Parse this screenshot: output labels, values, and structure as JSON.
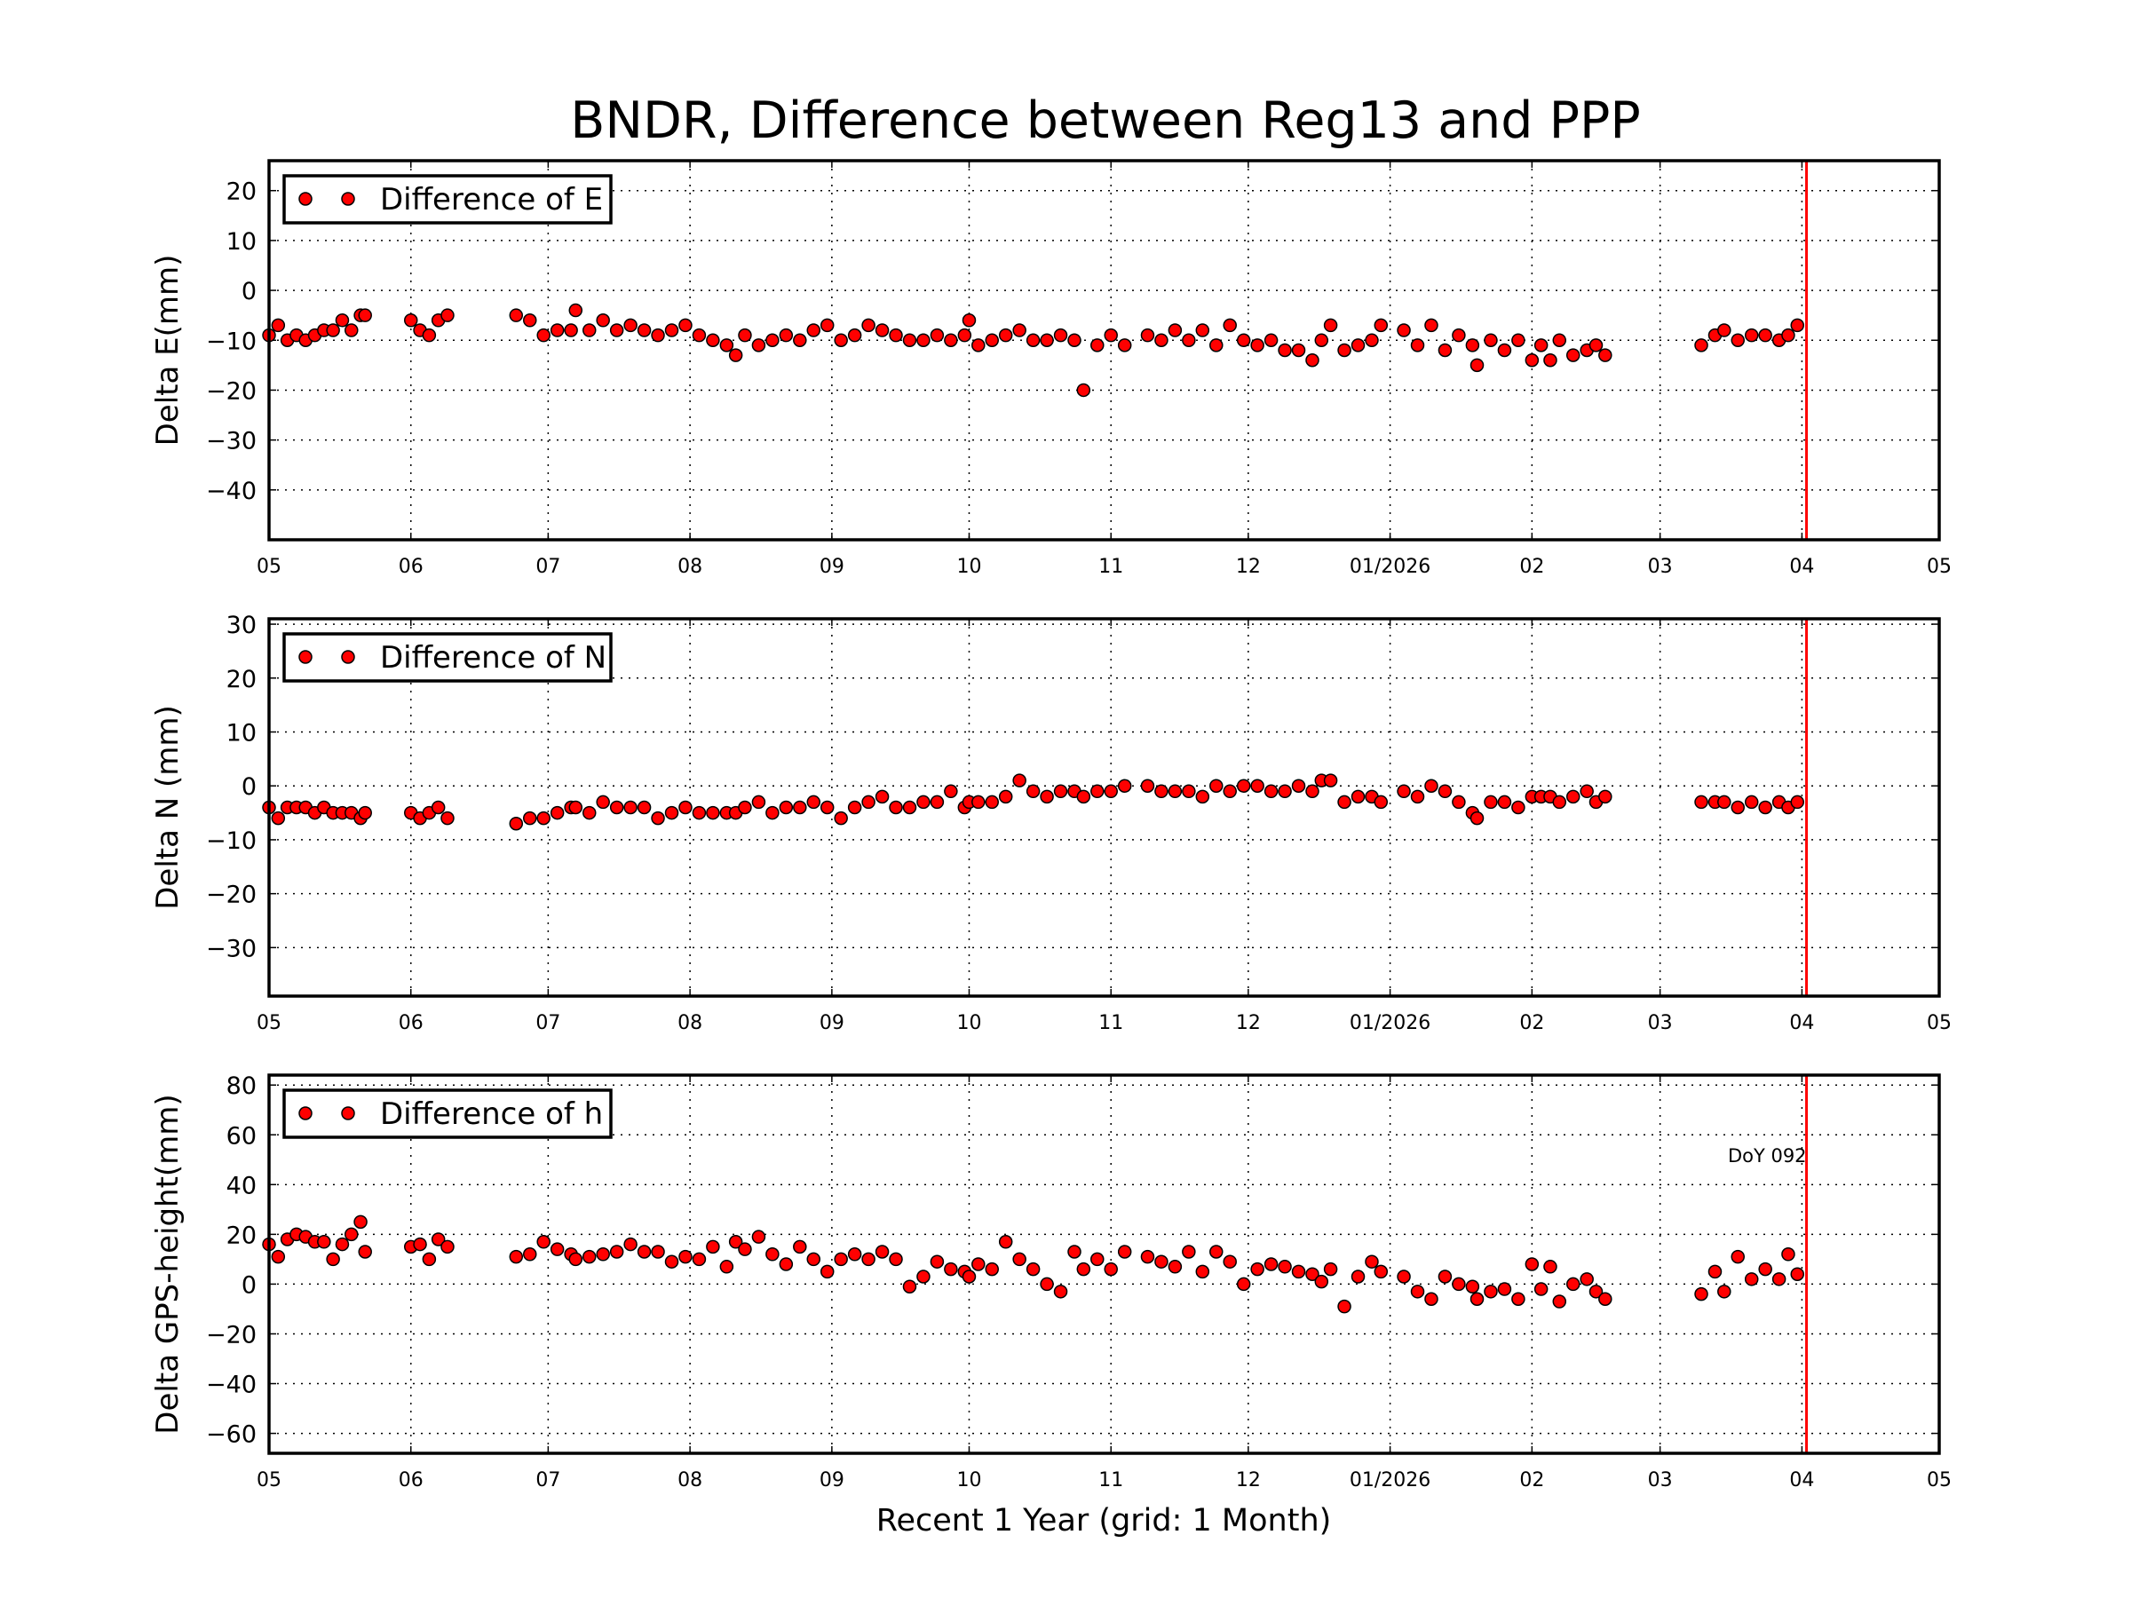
{
  "title": "BNDR, Difference between Reg13 and PPP",
  "colors": {
    "marker": "#ff0000",
    "marker_edge": "#000000",
    "vline": "#ff0000",
    "annotation": "#ff0000"
  },
  "chart_data": {
    "type": "scatter",
    "title": "BNDR, Difference between Reg13 and PPP",
    "xlabel": "Recent 1 Year (grid: 1 Month)",
    "xlim": [
      "2025-05-01",
      "2026-05-01"
    ],
    "x_tick_labels": [
      "05",
      "06",
      "07",
      "08",
      "09",
      "10",
      "11",
      "12",
      "01/2026",
      "02",
      "03",
      "04",
      "05"
    ],
    "x_tick_dates": [
      "2025-05-01",
      "2025-06-01",
      "2025-07-01",
      "2025-08-01",
      "2025-09-01",
      "2025-10-01",
      "2025-11-01",
      "2025-12-01",
      "2026-01-01",
      "2026-02-01",
      "2026-03-01",
      "2026-04-01",
      "2026-05-01"
    ],
    "grid": true,
    "legend_placement": "top-left",
    "vertical_line": {
      "date": "2026-04-02",
      "label": "DoY 092"
    },
    "dates": [
      "2025-05-01",
      "2025-05-03",
      "2025-05-05",
      "2025-05-07",
      "2025-05-09",
      "2025-05-11",
      "2025-05-13",
      "2025-05-15",
      "2025-05-17",
      "2025-05-19",
      "2025-05-21",
      "2025-05-22",
      "2025-06-01",
      "2025-06-03",
      "2025-06-05",
      "2025-06-07",
      "2025-06-09",
      "2025-06-24",
      "2025-06-27",
      "2025-06-30",
      "2025-07-03",
      "2025-07-06",
      "2025-07-07",
      "2025-07-10",
      "2025-07-13",
      "2025-07-16",
      "2025-07-19",
      "2025-07-22",
      "2025-07-25",
      "2025-07-28",
      "2025-07-31",
      "2025-08-03",
      "2025-08-06",
      "2025-08-09",
      "2025-08-11",
      "2025-08-13",
      "2025-08-16",
      "2025-08-19",
      "2025-08-22",
      "2025-08-25",
      "2025-08-28",
      "2025-08-31",
      "2025-09-03",
      "2025-09-06",
      "2025-09-09",
      "2025-09-12",
      "2025-09-15",
      "2025-09-18",
      "2025-09-21",
      "2025-09-24",
      "2025-09-27",
      "2025-09-30",
      "2025-10-01",
      "2025-10-03",
      "2025-10-06",
      "2025-10-09",
      "2025-10-12",
      "2025-10-15",
      "2025-10-18",
      "2025-10-21",
      "2025-10-24",
      "2025-10-26",
      "2025-10-29",
      "2025-11-01",
      "2025-11-04",
      "2025-11-09",
      "2025-11-12",
      "2025-11-15",
      "2025-11-18",
      "2025-11-21",
      "2025-11-24",
      "2025-11-27",
      "2025-11-30",
      "2025-12-03",
      "2025-12-06",
      "2025-12-09",
      "2025-12-12",
      "2025-12-15",
      "2025-12-17",
      "2025-12-19",
      "2025-12-22",
      "2025-12-25",
      "2025-12-28",
      "2025-12-30",
      "2026-01-04",
      "2026-01-07",
      "2026-01-10",
      "2026-01-13",
      "2026-01-16",
      "2026-01-19",
      "2026-01-20",
      "2026-01-23",
      "2026-01-26",
      "2026-01-29",
      "2026-02-01",
      "2026-02-03",
      "2026-02-05",
      "2026-02-07",
      "2026-02-10",
      "2026-02-13",
      "2026-02-15",
      "2026-02-17",
      "2026-03-10",
      "2026-03-13",
      "2026-03-15",
      "2026-03-18",
      "2026-03-21",
      "2026-03-24",
      "2026-03-27",
      "2026-03-29",
      "2026-03-31"
    ],
    "panels": [
      {
        "ylabel": "Delta E(mm)",
        "legend": "Difference of E",
        "ylim": [
          -50,
          26
        ],
        "yticks": [
          -40,
          -30,
          -20,
          -10,
          0,
          10,
          20
        ],
        "values": [
          -9,
          -7,
          -10,
          -9,
          -10,
          -9,
          -8,
          -8,
          -6,
          -8,
          -5,
          -5,
          -6,
          -8,
          -9,
          -6,
          -5,
          -5,
          -6,
          -9,
          -8,
          -8,
          -4,
          -8,
          -6,
          -8,
          -7,
          -8,
          -9,
          -8,
          -7,
          -9,
          -10,
          -11,
          -13,
          -9,
          -11,
          -10,
          -9,
          -10,
          -8,
          -7,
          -10,
          -9,
          -7,
          -8,
          -9,
          -10,
          -10,
          -9,
          -10,
          -9,
          -6,
          -11,
          -10,
          -9,
          -8,
          -10,
          -10,
          -9,
          -10,
          -20,
          -11,
          -9,
          -11,
          -9,
          -10,
          -8,
          -10,
          -8,
          -11,
          -7,
          -10,
          -11,
          -10,
          -12,
          -12,
          -14,
          -10,
          -7,
          -12,
          -11,
          -10,
          -7,
          -8,
          -11,
          -7,
          -12,
          -9,
          -11,
          -15,
          -10,
          -12,
          -10,
          -14,
          -11,
          -14,
          -10,
          -13,
          -12,
          -11,
          -13,
          -11,
          -9,
          -8,
          -10,
          -9,
          -9,
          -10,
          -9,
          -7
        ]
      },
      {
        "ylabel": "Delta N (mm)",
        "legend": "Difference of N",
        "ylim": [
          -39,
          31
        ],
        "yticks": [
          -30,
          -20,
          -10,
          0,
          10,
          20,
          30
        ],
        "values": [
          -4,
          -6,
          -4,
          -4,
          -4,
          -5,
          -4,
          -5,
          -5,
          -5,
          -6,
          -5,
          -5,
          -6,
          -5,
          -4,
          -6,
          -7,
          -6,
          -6,
          -5,
          -4,
          -4,
          -5,
          -3,
          -4,
          -4,
          -4,
          -6,
          -5,
          -4,
          -5,
          -5,
          -5,
          -5,
          -4,
          -3,
          -5,
          -4,
          -4,
          -3,
          -4,
          -6,
          -4,
          -3,
          -2,
          -4,
          -4,
          -3,
          -3,
          -1,
          -4,
          -3,
          -3,
          -3,
          -2,
          1,
          -1,
          -2,
          -1,
          -1,
          -2,
          -1,
          -1,
          0,
          0,
          -1,
          -1,
          -1,
          -2,
          0,
          -1,
          0,
          0,
          -1,
          -1,
          0,
          -1,
          1,
          1,
          -3,
          -2,
          -2,
          -3,
          -1,
          -2,
          0,
          -1,
          -3,
          -5,
          -6,
          -3,
          -3,
          -4,
          -2,
          -2,
          -2,
          -3,
          -2,
          -1,
          -3,
          -2,
          -3,
          -3,
          -3,
          -4,
          -3,
          -4,
          -3,
          -4,
          -3
        ]
      },
      {
        "ylabel": "Delta GPS-height(mm)",
        "legend": "Difference of h",
        "ylim": [
          -68,
          84
        ],
        "yticks": [
          -60,
          -40,
          -20,
          0,
          20,
          40,
          60,
          80
        ],
        "values": [
          16,
          11,
          18,
          20,
          19,
          17,
          17,
          10,
          16,
          20,
          25,
          13,
          15,
          16,
          10,
          18,
          15,
          11,
          12,
          17,
          14,
          12,
          10,
          11,
          12,
          13,
          16,
          13,
          13,
          9,
          11,
          10,
          15,
          7,
          17,
          14,
          19,
          12,
          8,
          15,
          10,
          5,
          10,
          12,
          10,
          13,
          10,
          -1,
          3,
          9,
          6,
          5,
          3,
          8,
          6,
          17,
          10,
          6,
          0,
          -3,
          13,
          6,
          10,
          6,
          13,
          11,
          9,
          7,
          13,
          5,
          13,
          9,
          0,
          6,
          8,
          7,
          5,
          4,
          1,
          6,
          -9,
          3,
          9,
          5,
          3,
          -3,
          -6,
          3,
          0,
          -1,
          -6,
          -3,
          -2,
          -6,
          8,
          -2,
          7,
          -7,
          0,
          2,
          -3,
          -6,
          -4,
          5,
          -3,
          11,
          2,
          6,
          2,
          12,
          4
        ]
      }
    ]
  }
}
